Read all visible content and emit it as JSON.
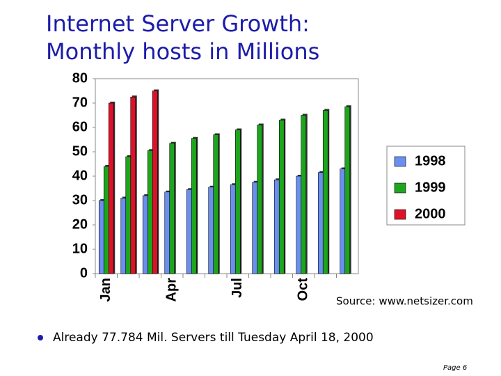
{
  "chart_data": {
    "type": "bar",
    "title": "Internet Server Growth:",
    "subtitle": "Monthly hosts in Millions",
    "categories": [
      "Jan",
      null,
      null,
      "Apr",
      null,
      null,
      "Jul",
      null,
      null,
      "Oct",
      null,
      null
    ],
    "series": [
      {
        "name": "1998",
        "color": "#6a8ff0",
        "values": [
          30,
          31,
          32,
          33.5,
          34.5,
          35.5,
          36.5,
          37.5,
          38.5,
          40,
          41.5,
          43
        ]
      },
      {
        "name": "1999",
        "color": "#1ea51e",
        "values": [
          44,
          48,
          50.5,
          53.5,
          55.5,
          57,
          59,
          61,
          63,
          65,
          67,
          68.5
        ]
      },
      {
        "name": "2000",
        "color": "#e0102a",
        "values": [
          70,
          72.5,
          75,
          null,
          null,
          null,
          null,
          null,
          null,
          null,
          null,
          null
        ]
      }
    ],
    "ylim": [
      0,
      80
    ],
    "yticks": [
      0,
      10,
      20,
      30,
      40,
      50,
      60,
      70,
      80
    ],
    "grid": false,
    "legend": "right",
    "source": "Source: www.netsizer.com",
    "bullet": "Already 77.784 Mil. Servers till Tuesday April 18, 2000",
    "page": "Page 6"
  }
}
